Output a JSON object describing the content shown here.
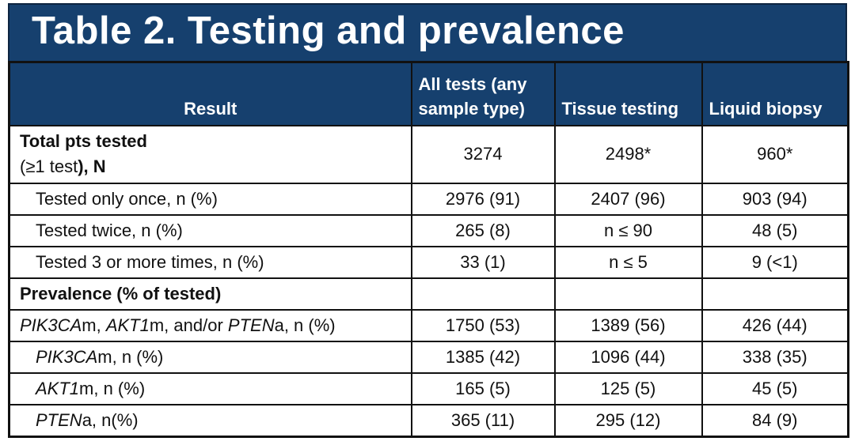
{
  "title": "Table 2. Testing and prevalence",
  "colors": {
    "header_bg": "#16406e",
    "border": "#111111",
    "title_text": "#ffffff"
  },
  "table": {
    "columns": [
      "Result",
      "All tests (any\nsample type)",
      "Tissue testing",
      "Liquid biopsy"
    ],
    "rows": [
      {
        "tall": true,
        "indent": false,
        "segments": [
          {
            "t": "Total pts tested",
            "b": true
          },
          {
            "t": "(≥1 test",
            "br": true
          },
          {
            "t": "), N",
            "b": true
          }
        ],
        "values": [
          "3274",
          "2498*",
          "960*"
        ]
      },
      {
        "indent": true,
        "segments": [
          {
            "t": "Tested only once, n (%)"
          }
        ],
        "values": [
          "2976 (91)",
          "2407 (96)",
          "903 (94)"
        ]
      },
      {
        "indent": true,
        "segments": [
          {
            "t": "Tested twice, n (%)"
          }
        ],
        "values": [
          "265 (8)",
          "n ≤ 90",
          "48 (5)"
        ]
      },
      {
        "indent": true,
        "segments": [
          {
            "t": "Tested 3 or more times, n (%)"
          }
        ],
        "values": [
          "33 (1)",
          "n ≤ 5",
          "9 (<1)"
        ]
      },
      {
        "indent": false,
        "segments": [
          {
            "t": "Prevalence (% of tested)",
            "b": true
          }
        ],
        "values": [
          "",
          "",
          ""
        ]
      },
      {
        "indent": false,
        "segments": [
          {
            "t": "PIK3CA",
            "i": true
          },
          {
            "t": "m, "
          },
          {
            "t": "AKT1",
            "i": true
          },
          {
            "t": "m, and/or "
          },
          {
            "t": "PTEN",
            "i": true
          },
          {
            "t": "a, n (%)"
          }
        ],
        "values": [
          "1750 (53)",
          "1389 (56)",
          "426 (44)"
        ]
      },
      {
        "indent": true,
        "segments": [
          {
            "t": "PIK3CA",
            "i": true
          },
          {
            "t": "m, n (%)"
          }
        ],
        "values": [
          "1385 (42)",
          "1096 (44)",
          "338 (35)"
        ]
      },
      {
        "indent": true,
        "segments": [
          {
            "t": "AKT1",
            "i": true
          },
          {
            "t": "m, n (%)"
          }
        ],
        "values": [
          "165 (5)",
          "125 (5)",
          "45 (5)"
        ]
      },
      {
        "indent": true,
        "segments": [
          {
            "t": "PTEN",
            "i": true
          },
          {
            "t": "a, n(%)"
          }
        ],
        "values": [
          "365 (11)",
          "295 (12)",
          "84 (9)"
        ]
      }
    ]
  }
}
